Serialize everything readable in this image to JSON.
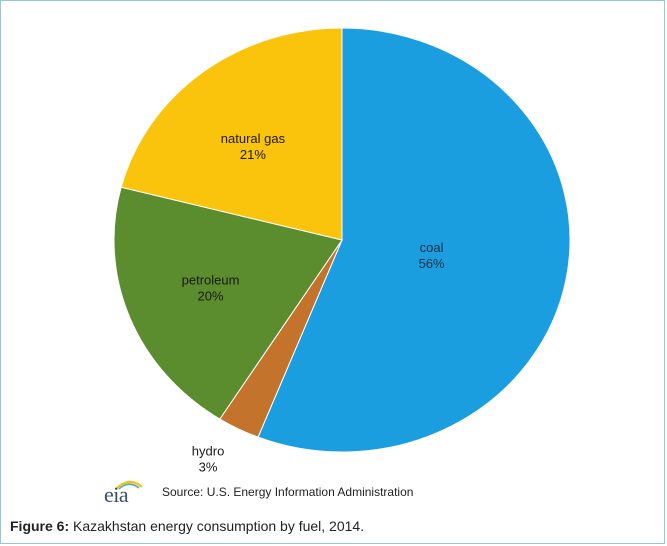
{
  "chart_data": {
    "type": "pie",
    "slices": [
      {
        "label": "coal",
        "value": 56,
        "value_text": "56%",
        "color": "#1a9ee0"
      },
      {
        "label": "hydro",
        "value": 3,
        "value_text": "3%",
        "color": "#c4732c"
      },
      {
        "label": "petroleum",
        "value": 20,
        "value_text": "20%",
        "color": "#5b8c2e"
      },
      {
        "label": "natural gas",
        "value": 21,
        "value_text": "21%",
        "color": "#f9c40b"
      }
    ],
    "start_angle": "12 o'clock",
    "direction": "clockwise",
    "legend": "none"
  },
  "source": {
    "logo_text": "eia",
    "text": "Source: U.S. Energy Information Administration"
  },
  "caption": {
    "label": "Figure 6:",
    "text": " Kazakhstan energy consumption by fuel, 2014."
  },
  "colors": {
    "border": "#8fc8d8",
    "logo": "#39506b"
  }
}
